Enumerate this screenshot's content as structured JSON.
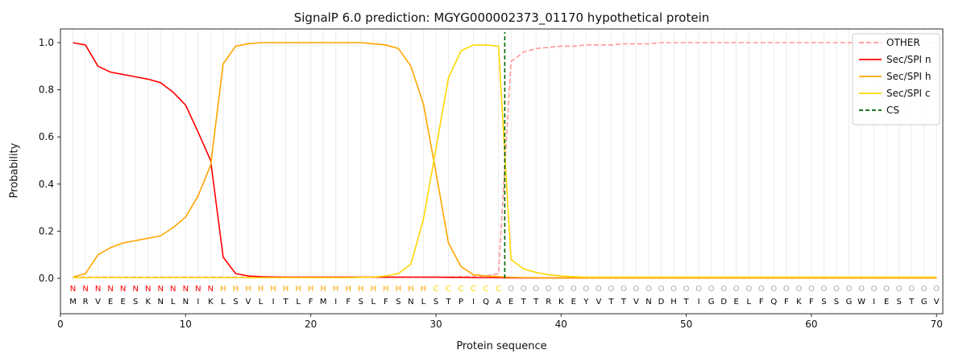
{
  "chart_data": {
    "type": "line",
    "title": "SignalP 6.0 prediction: MGYG000002373_01170 hypothetical protein",
    "xlabel": "Protein sequence",
    "ylabel": "Probability",
    "xlim": [
      0,
      70.5
    ],
    "ylim": [
      0,
      1.0
    ],
    "x_ticks": [
      0,
      10,
      20,
      30,
      40,
      50,
      60,
      70
    ],
    "y_ticks": [
      0.0,
      0.2,
      0.4,
      0.6,
      0.8,
      1.0
    ],
    "grid": true,
    "grid_color": "#ececec",
    "legend_position": "upper right",
    "legend": [
      "OTHER",
      "Sec/SPI n",
      "Sec/SPI h",
      "Sec/SPI c",
      "CS"
    ],
    "series": [
      {
        "name": "OTHER",
        "color": "#ff9896",
        "dash": "6 3",
        "values": [
          0.005,
          0.005,
          0.005,
          0.005,
          0.005,
          0.005,
          0.005,
          0.005,
          0.005,
          0.005,
          0.005,
          0.005,
          0.005,
          0.005,
          0.005,
          0.005,
          0.005,
          0.005,
          0.005,
          0.005,
          0.005,
          0.005,
          0.005,
          0.005,
          0.005,
          0.005,
          0.005,
          0.005,
          0.005,
          0.005,
          0.006,
          0.007,
          0.008,
          0.01,
          0.02,
          0.92,
          0.96,
          0.975,
          0.98,
          0.985,
          0.985,
          0.99,
          0.99,
          0.99,
          0.995,
          0.995,
          0.995,
          1.0,
          1.0,
          1.0,
          1.0,
          1.0,
          1.0,
          1.0,
          1.0,
          1.0,
          1.0,
          1.0,
          1.0,
          1.0,
          1.0,
          1.0,
          1.0,
          1.0,
          1.0,
          1.0,
          1.0,
          1.0,
          1.0,
          1.0
        ]
      },
      {
        "name": "Sec/SPI n",
        "color": "#ff0000",
        "dash": null,
        "values": [
          1.0,
          0.99,
          0.9,
          0.875,
          0.865,
          0.855,
          0.845,
          0.83,
          0.79,
          0.735,
          0.62,
          0.5,
          0.09,
          0.02,
          0.01,
          0.007,
          0.006,
          0.005,
          0.005,
          0.005,
          0.005,
          0.005,
          0.005,
          0.005,
          0.005,
          0.005,
          0.005,
          0.005,
          0.005,
          0.005,
          0.004,
          0.004,
          0.003,
          0.003,
          0.003,
          0.002,
          0.002,
          0.002,
          0.002,
          0.002,
          0.002,
          0.002,
          0.002,
          0.002,
          0.002,
          0.002,
          0.002,
          0.002,
          0.002,
          0.002,
          0.002,
          0.002,
          0.002,
          0.002,
          0.002,
          0.002,
          0.002,
          0.002,
          0.002,
          0.002,
          0.002,
          0.002,
          0.002,
          0.002,
          0.002,
          0.002,
          0.002,
          0.002,
          0.002,
          0.002
        ]
      },
      {
        "name": "Sec/SPI h",
        "color": "#ffa500",
        "dash": null,
        "values": [
          0.005,
          0.02,
          0.1,
          0.13,
          0.15,
          0.16,
          0.17,
          0.18,
          0.215,
          0.26,
          0.35,
          0.48,
          0.91,
          0.985,
          0.995,
          1.0,
          1.0,
          1.0,
          1.0,
          1.0,
          1.0,
          1.0,
          1.0,
          1.0,
          0.995,
          0.99,
          0.975,
          0.9,
          0.74,
          0.45,
          0.15,
          0.05,
          0.015,
          0.01,
          0.007,
          0.004,
          0.003,
          0.003,
          0.002,
          0.002,
          0.002,
          0.002,
          0.002,
          0.002,
          0.002,
          0.002,
          0.002,
          0.002,
          0.002,
          0.002,
          0.002,
          0.002,
          0.002,
          0.002,
          0.002,
          0.002,
          0.002,
          0.002,
          0.002,
          0.002,
          0.002,
          0.002,
          0.002,
          0.002,
          0.002,
          0.002,
          0.002,
          0.002,
          0.002,
          0.002
        ]
      },
      {
        "name": "Sec/SPI c",
        "color": "#ffd700",
        "dash": null,
        "values": [
          0.003,
          0.003,
          0.003,
          0.003,
          0.003,
          0.003,
          0.003,
          0.003,
          0.003,
          0.003,
          0.003,
          0.003,
          0.003,
          0.003,
          0.003,
          0.003,
          0.003,
          0.003,
          0.003,
          0.003,
          0.003,
          0.003,
          0.003,
          0.004,
          0.005,
          0.01,
          0.02,
          0.06,
          0.25,
          0.55,
          0.85,
          0.965,
          0.99,
          0.99,
          0.985,
          0.08,
          0.04,
          0.025,
          0.015,
          0.01,
          0.007,
          0.005,
          0.005,
          0.005,
          0.005,
          0.005,
          0.005,
          0.005,
          0.005,
          0.005,
          0.005,
          0.005,
          0.005,
          0.005,
          0.005,
          0.005,
          0.005,
          0.005,
          0.005,
          0.005,
          0.005,
          0.005,
          0.005,
          0.005,
          0.005,
          0.005,
          0.005,
          0.005,
          0.005,
          0.005
        ]
      }
    ],
    "cs_line": {
      "name": "CS",
      "x": 35.5,
      "color": "#006400",
      "dash": "5 3"
    },
    "sequence": "MRVEESKNLNIKLSVLITLFMIFSLFSNLSTPIQAETTRKEYVTTVNDHTIGDELFQFKFSSGWIESTGV",
    "regions": [
      {
        "letter": "N",
        "start": 1,
        "end": 12,
        "color": "#ff0000"
      },
      {
        "letter": "H",
        "start": 13,
        "end": 29,
        "color": "#ffa500"
      },
      {
        "letter": "C",
        "start": 30,
        "end": 35,
        "color": "#ffd700"
      },
      {
        "letter": "O",
        "start": 36,
        "end": 70,
        "color": "#aaaaaa"
      }
    ]
  }
}
